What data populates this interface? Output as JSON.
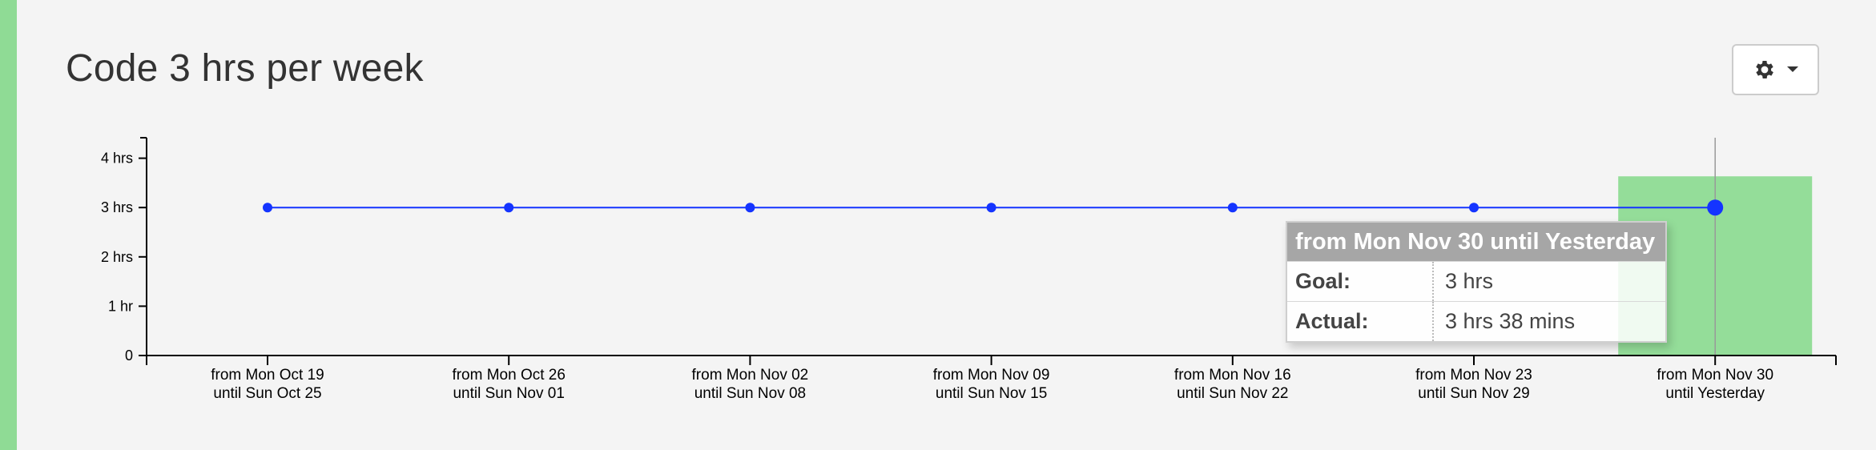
{
  "colors": {
    "accent": "#8fdb95",
    "line": "#1434ff",
    "highlight_bar": "#94dd99"
  },
  "page": {
    "title": "Code 3 hrs per week"
  },
  "toolbar": {
    "settings_icon": "gear-icon",
    "dropdown_icon": "caret-down-icon"
  },
  "chart_data": {
    "type": "line",
    "title": "Code 3 hrs per week",
    "xlabel": "",
    "ylabel": "",
    "ylim": [
      0,
      4.4
    ],
    "y_ticks": [
      {
        "value": 4,
        "label": "4 hrs"
      },
      {
        "value": 3,
        "label": "3 hrs"
      },
      {
        "value": 2,
        "label": "2 hrs"
      },
      {
        "value": 1,
        "label": "1 hr"
      },
      {
        "value": 0,
        "label": "0"
      }
    ],
    "categories": [
      {
        "line1": "from Mon Oct 19",
        "line2": "until Sun Oct 25"
      },
      {
        "line1": "from Mon Oct 26",
        "line2": "until Sun Nov 01"
      },
      {
        "line1": "from Mon Nov 02",
        "line2": "until Sun Nov 08"
      },
      {
        "line1": "from Mon Nov 09",
        "line2": "until Sun Nov 15"
      },
      {
        "line1": "from Mon Nov 16",
        "line2": "until Sun Nov 22"
      },
      {
        "line1": "from Mon Nov 23",
        "line2": "until Sun Nov 29"
      },
      {
        "line1": "from Mon Nov 30",
        "line2": "until Yesterday"
      }
    ],
    "goal_values": [
      3,
      3,
      3,
      3,
      3,
      3,
      3
    ],
    "actual_bar": {
      "index": 6,
      "value": 3.633
    },
    "highlight_index": 6,
    "grid": false,
    "legend": "none"
  },
  "tooltip": {
    "header": "from Mon Nov 30 until Yesterday",
    "rows": [
      {
        "key": "Goal:",
        "value": "3 hrs"
      },
      {
        "key": "Actual:",
        "value": "3 hrs 38 mins"
      }
    ]
  }
}
